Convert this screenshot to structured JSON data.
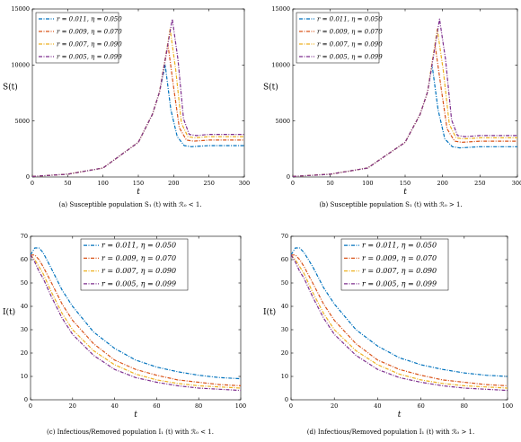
{
  "chart_data": [
    {
      "type": "line",
      "ylabel": "S(t)",
      "xlabel": "t",
      "xlim": [
        0,
        300
      ],
      "ylim": [
        0,
        15000
      ],
      "xticks": [
        "0",
        "50",
        "100",
        "150",
        "200",
        "250",
        "300"
      ],
      "yticks": [
        "0",
        "5000",
        "10000",
        "15000"
      ],
      "legend": "top-left",
      "grid": false,
      "caption": "(a) Susceptible population S₁ (t) with ℛ₀ < 1.",
      "series": [
        {
          "name": "r = 0.011, η = 0.050",
          "color": "#0072BD",
          "x": [
            0,
            50,
            100,
            150,
            170,
            180,
            188,
            196,
            205,
            215,
            225,
            250,
            300
          ],
          "y": [
            50,
            250,
            800,
            3100,
            5600,
            7600,
            10000,
            6000,
            3600,
            2800,
            2700,
            2800,
            2800
          ]
        },
        {
          "name": "r = 0.009, η = 0.070",
          "color": "#D95319",
          "x": [
            0,
            50,
            100,
            150,
            170,
            180,
            192,
            200,
            208,
            218,
            228,
            250,
            300
          ],
          "y": [
            50,
            250,
            800,
            3100,
            5600,
            7600,
            11800,
            8000,
            4400,
            3300,
            3200,
            3300,
            3300
          ]
        },
        {
          "name": "r = 0.007, η = 0.090",
          "color": "#EDB120",
          "x": [
            0,
            50,
            100,
            150,
            170,
            180,
            195,
            203,
            211,
            220,
            230,
            250,
            300
          ],
          "y": [
            50,
            250,
            800,
            3100,
            5600,
            7600,
            13200,
            9500,
            4800,
            3600,
            3500,
            3600,
            3600
          ]
        },
        {
          "name": "r = 0.005, η = 0.099",
          "color": "#7E2F8E",
          "x": [
            0,
            50,
            100,
            150,
            170,
            180,
            198,
            206,
            214,
            222,
            232,
            250,
            300
          ],
          "y": [
            50,
            250,
            800,
            3100,
            5600,
            7600,
            14100,
            10500,
            5200,
            3800,
            3700,
            3800,
            3800
          ]
        }
      ]
    },
    {
      "type": "line",
      "ylabel": "S(t)",
      "xlabel": "t",
      "xlim": [
        0,
        300
      ],
      "ylim": [
        0,
        15000
      ],
      "xticks": [
        "0",
        "50",
        "100",
        "150",
        "200",
        "250",
        "300"
      ],
      "yticks": [
        "0",
        "5000",
        "10000",
        "15000"
      ],
      "legend": "top-left",
      "grid": false,
      "caption": "(b) Susceptible population S₁ (t) with ℛ₀ > 1.",
      "series": [
        {
          "name": "r = 0.011, η = 0.050",
          "color": "#0072BD",
          "x": [
            0,
            50,
            100,
            150,
            170,
            180,
            186,
            194,
            203,
            213,
            223,
            250,
            300
          ],
          "y": [
            50,
            250,
            800,
            3100,
            5600,
            7600,
            10000,
            6000,
            3400,
            2700,
            2600,
            2700,
            2700
          ]
        },
        {
          "name": "r = 0.009, η = 0.070",
          "color": "#D95319",
          "x": [
            0,
            50,
            100,
            150,
            170,
            180,
            190,
            198,
            206,
            216,
            226,
            250,
            300
          ],
          "y": [
            50,
            250,
            800,
            3100,
            5600,
            7600,
            11800,
            8000,
            4300,
            3200,
            3100,
            3200,
            3200
          ]
        },
        {
          "name": "r = 0.007, η = 0.090",
          "color": "#EDB120",
          "x": [
            0,
            50,
            100,
            150,
            170,
            180,
            193,
            201,
            209,
            218,
            228,
            250,
            300
          ],
          "y": [
            50,
            250,
            800,
            3100,
            5600,
            7600,
            13200,
            9500,
            4700,
            3500,
            3400,
            3500,
            3500
          ]
        },
        {
          "name": "r = 0.005, η = 0.099",
          "color": "#7E2F8E",
          "x": [
            0,
            50,
            100,
            150,
            170,
            180,
            196,
            204,
            212,
            220,
            230,
            250,
            300
          ],
          "y": [
            50,
            250,
            800,
            3100,
            5600,
            7600,
            14100,
            10500,
            5100,
            3700,
            3600,
            3700,
            3700
          ]
        }
      ]
    },
    {
      "type": "line",
      "ylabel": "I(t)",
      "xlabel": "t",
      "xlim": [
        0,
        100
      ],
      "ylim": [
        0,
        70
      ],
      "xticks": [
        "0",
        "20",
        "40",
        "60",
        "80",
        "100"
      ],
      "yticks": [
        "0",
        "10",
        "20",
        "30",
        "40",
        "50",
        "60",
        "70"
      ],
      "legend": "top-right",
      "grid": false,
      "caption": "(c) Infectious/Removed population I₁ (t) with ℛ₀ < 1.",
      "series": [
        {
          "name": "r = 0.011, η = 0.050",
          "color": "#0072BD",
          "x": [
            0,
            2,
            4,
            6,
            10,
            15,
            20,
            30,
            40,
            50,
            60,
            70,
            80,
            90,
            100
          ],
          "y": [
            62,
            65,
            65,
            63,
            56,
            47,
            40,
            29,
            22,
            17,
            14,
            12,
            10.5,
            9.5,
            9
          ]
        },
        {
          "name": "r = 0.009, η = 0.070",
          "color": "#D95319",
          "x": [
            0,
            2,
            4,
            6,
            10,
            15,
            20,
            30,
            40,
            50,
            60,
            70,
            80,
            90,
            100
          ],
          "y": [
            62,
            62,
            60,
            57,
            50,
            41,
            34,
            24,
            17,
            13,
            10.5,
            8.5,
            7.5,
            6.5,
            6
          ]
        },
        {
          "name": "r = 0.007, η = 0.090",
          "color": "#EDB120",
          "x": [
            0,
            2,
            4,
            6,
            10,
            15,
            20,
            30,
            40,
            50,
            60,
            70,
            80,
            90,
            100
          ],
          "y": [
            62,
            60,
            57,
            54,
            46,
            37,
            30,
            21,
            15,
            11,
            8.5,
            7,
            6,
            5.5,
            5
          ]
        },
        {
          "name": "r = 0.005, η = 0.099",
          "color": "#7E2F8E",
          "x": [
            0,
            2,
            4,
            6,
            10,
            15,
            20,
            30,
            40,
            50,
            60,
            70,
            80,
            90,
            100
          ],
          "y": [
            62,
            59,
            55,
            52,
            44,
            35,
            28,
            19,
            13,
            9.5,
            7.5,
            6,
            5,
            4.5,
            4
          ]
        }
      ]
    },
    {
      "type": "line",
      "ylabel": "I(t)",
      "xlabel": "t",
      "xlim": [
        0,
        100
      ],
      "ylim": [
        0,
        70
      ],
      "xticks": [
        "0",
        "20",
        "40",
        "60",
        "80",
        "100"
      ],
      "yticks": [
        "0",
        "10",
        "20",
        "30",
        "40",
        "50",
        "60",
        "70"
      ],
      "legend": "top-right",
      "grid": false,
      "caption": "(d) Infectious/Removed population I₁ (t) with ℛ₀ > 1.",
      "series": [
        {
          "name": "r = 0.011, η = 0.050",
          "color": "#0072BD",
          "x": [
            0,
            2,
            4,
            6,
            10,
            15,
            20,
            30,
            40,
            50,
            60,
            70,
            80,
            90,
            100
          ],
          "y": [
            62,
            65,
            65,
            63,
            57,
            48,
            41,
            30,
            23,
            18,
            15,
            13,
            11.5,
            10.5,
            10
          ]
        },
        {
          "name": "r = 0.009, η = 0.070",
          "color": "#D95319",
          "x": [
            0,
            2,
            4,
            6,
            10,
            15,
            20,
            30,
            40,
            50,
            60,
            70,
            80,
            90,
            100
          ],
          "y": [
            62,
            62,
            60,
            57,
            50,
            41,
            34,
            24,
            17,
            13,
            10.5,
            8.5,
            7.5,
            6.5,
            6
          ]
        },
        {
          "name": "r = 0.007, η = 0.090",
          "color": "#EDB120",
          "x": [
            0,
            2,
            4,
            6,
            10,
            15,
            20,
            30,
            40,
            50,
            60,
            70,
            80,
            90,
            100
          ],
          "y": [
            62,
            60,
            57,
            54,
            46,
            37,
            30,
            21,
            15,
            11,
            8.5,
            7,
            6,
            5.5,
            5
          ]
        },
        {
          "name": "r = 0.005, η = 0.099",
          "color": "#7E2F8E",
          "x": [
            0,
            2,
            4,
            6,
            10,
            15,
            20,
            30,
            40,
            50,
            60,
            70,
            80,
            90,
            100
          ],
          "y": [
            62,
            59,
            55,
            52,
            44,
            35,
            28,
            19,
            13,
            9.5,
            7.5,
            6,
            5,
            4.5,
            4
          ]
        }
      ]
    }
  ]
}
